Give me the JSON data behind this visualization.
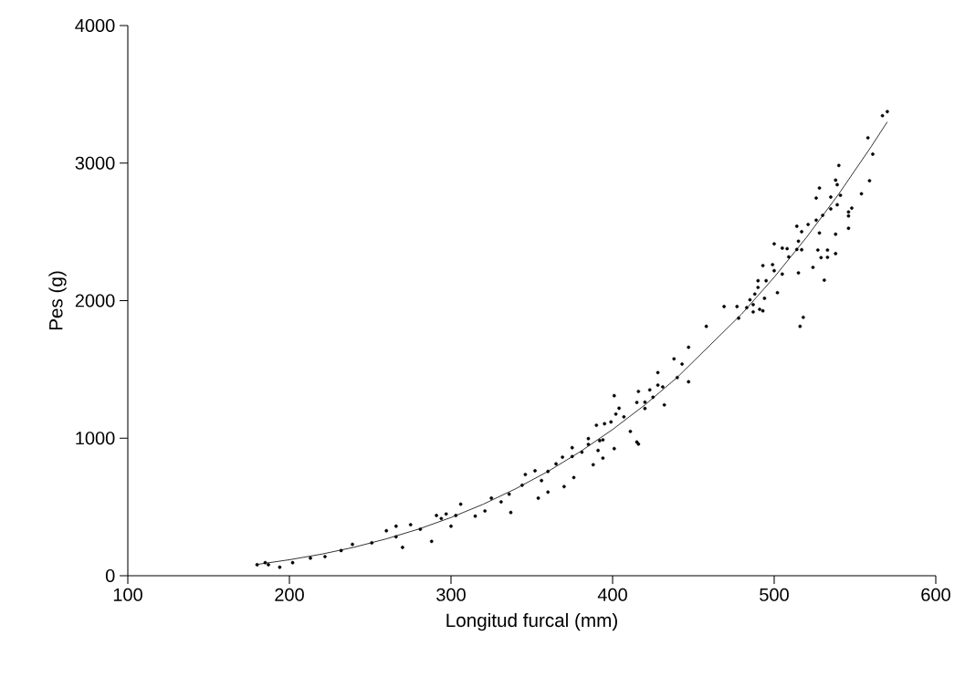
{
  "chart_data": {
    "type": "scatter",
    "xlabel": "Longitud furcal (mm)",
    "ylabel": "Pes (g)",
    "xlim": [
      100,
      600
    ],
    "xticks": [
      100,
      200,
      300,
      400,
      500,
      600
    ],
    "ylim": [
      0,
      4000
    ],
    "yticks": [
      0,
      1000,
      2000,
      3000,
      4000
    ],
    "series": [
      {
        "color": "#000000",
        "marker": "circle",
        "x": [
          180,
          185,
          187,
          194,
          202,
          213,
          222,
          232,
          239,
          251,
          260,
          266,
          266,
          270,
          275,
          281,
          288,
          291,
          294,
          297,
          300,
          303,
          306,
          315,
          321,
          325,
          331,
          336,
          337,
          344,
          346,
          352,
          354,
          356,
          360,
          360,
          365,
          369,
          370,
          375,
          375,
          376,
          381,
          385,
          385,
          388,
          390,
          391,
          392,
          394,
          394,
          395,
          399,
          401,
          401,
          402,
          404,
          407,
          411,
          415,
          415,
          416,
          416,
          420,
          420,
          423,
          425,
          428,
          428,
          431,
          432,
          438,
          440,
          443,
          447,
          447,
          458,
          469,
          477,
          478,
          483,
          485,
          487,
          487,
          488,
          490,
          490,
          491,
          493,
          493,
          494,
          495,
          499,
          500,
          500,
          502,
          505,
          505,
          508,
          509,
          514,
          514,
          515,
          515,
          516,
          517,
          517,
          518,
          521,
          524,
          526,
          526,
          527,
          528,
          528,
          529,
          530,
          531,
          533,
          533,
          535,
          535,
          538,
          538,
          538,
          539,
          539,
          540,
          541,
          546,
          546,
          546,
          548,
          554,
          558,
          559,
          561,
          567,
          570
        ],
        "values": [
          80,
          95,
          80,
          62,
          95,
          128,
          139,
          183,
          228,
          239,
          327,
          283,
          360,
          206,
          371,
          338,
          250,
          438,
          416,
          449,
          360,
          438,
          520,
          433,
          471,
          564,
          537,
          593,
          460,
          658,
          736,
          763,
          564,
          692,
          758,
          608,
          813,
          862,
          648,
          931,
          867,
          714,
          898,
          997,
          955,
          807,
          1094,
          911,
          982,
          988,
          855,
          1105,
          1118,
          1309,
          924,
          1175,
          1218,
          1155,
          1049,
          1260,
          972,
          1340,
          957,
          1262,
          1216,
          1351,
          1298,
          1477,
          1386,
          1373,
          1242,
          1577,
          1441,
          1539,
          1661,
          1410,
          1813,
          1957,
          1957,
          1873,
          1949,
          2006,
          1971,
          1918,
          2048,
          2145,
          2096,
          1937,
          2255,
          1926,
          2017,
          2145,
          2262,
          2413,
          2218,
          2058,
          2382,
          2193,
          2378,
          2318,
          2541,
          2372,
          2432,
          2202,
          1813,
          2501,
          2370,
          1879,
          2554,
          2242,
          2746,
          2585,
          2368,
          2819,
          2492,
          2313,
          2620,
          2149,
          2368,
          2315,
          2753,
          2667,
          2876,
          2483,
          2342,
          2843,
          2697,
          2983,
          2766,
          2645,
          2526,
          2616,
          2673,
          2777,
          3184,
          2872,
          3065,
          3345,
          3374
        ]
      },
      {
        "type": "line",
        "color": "#000000",
        "marker": "none",
        "line_style": "solid",
        "x": [
          180,
          200,
          220,
          240,
          260,
          280,
          300,
          320,
          340,
          360,
          380,
          400,
          420,
          440,
          480,
          500,
          520,
          540,
          560,
          570
        ],
        "values": [
          82,
          116,
          157,
          207,
          268,
          339,
          423,
          520,
          632,
          758,
          902,
          1063,
          1242,
          1442,
          1904,
          2170,
          2460,
          2776,
          3119,
          3300
        ]
      }
    ]
  }
}
